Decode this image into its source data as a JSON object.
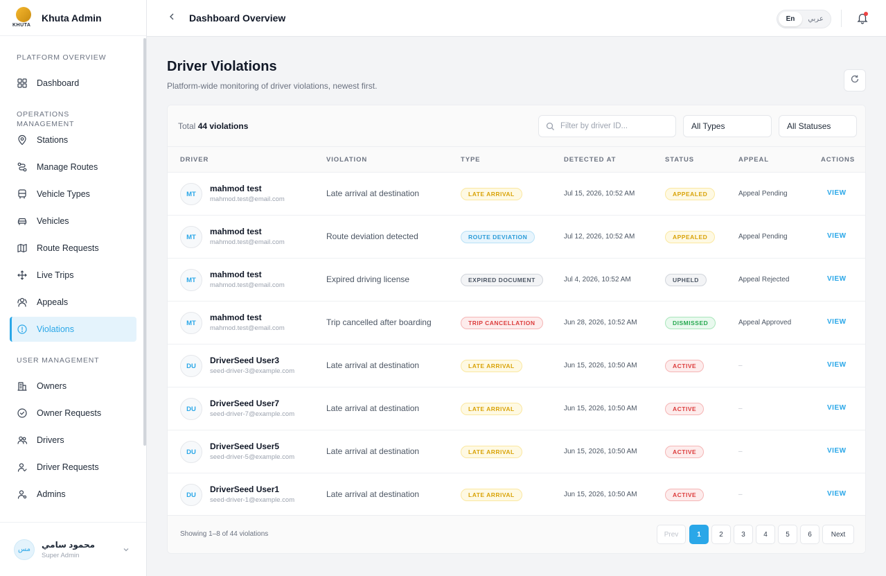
{
  "brand": {
    "title": "Khuta Admin",
    "logo_text": "KHUTA"
  },
  "sidebar": {
    "sections": [
      {
        "title": "PLATFORM OVERVIEW",
        "items": [
          {
            "label": "Dashboard",
            "icon": "grid-icon"
          }
        ]
      },
      {
        "title": "OPERATIONS MANAGEMENT",
        "items": [
          {
            "label": "Stations",
            "icon": "map-pin-icon"
          },
          {
            "label": "Manage Routes",
            "icon": "route-icon"
          },
          {
            "label": "Vehicle Types",
            "icon": "bus-icon"
          },
          {
            "label": "Vehicles",
            "icon": "car-icon"
          },
          {
            "label": "Route Requests",
            "icon": "map-icon"
          },
          {
            "label": "Live Trips",
            "icon": "move-icon"
          },
          {
            "label": "Appeals",
            "icon": "appeals-icon"
          },
          {
            "label": "Violations",
            "icon": "alert-circle-icon",
            "active": true
          }
        ]
      },
      {
        "title": "USER MANAGEMENT",
        "items": [
          {
            "label": "Owners",
            "icon": "building-icon"
          },
          {
            "label": "Owner Requests",
            "icon": "check-circle-icon"
          },
          {
            "label": "Drivers",
            "icon": "users-icon"
          },
          {
            "label": "Driver Requests",
            "icon": "user-check-icon"
          },
          {
            "label": "Admins",
            "icon": "user-gear-icon"
          }
        ]
      }
    ]
  },
  "user": {
    "initials": "مس",
    "name": "محمود سامي",
    "role": "Super Admin"
  },
  "header": {
    "title": "Dashboard Overview",
    "lang_en": "En",
    "lang_ar": "عربي"
  },
  "page": {
    "title": "Driver Violations",
    "subtitle": "Platform-wide monitoring of driver violations, newest first."
  },
  "toolbar": {
    "total_prefix": "Total",
    "total_value": "44 violations",
    "filter_placeholder": "Filter by driver ID...",
    "type_select": "All Types",
    "status_select": "All Statuses"
  },
  "table": {
    "columns": [
      "DRIVER",
      "VIOLATION",
      "TYPE",
      "DETECTED AT",
      "STATUS",
      "APPEAL",
      "ACTIONS"
    ],
    "rows": [
      {
        "initials": "MT",
        "name": "mahmod test",
        "email": "mahmod.test@email.com",
        "violation": "Late arrival at destination",
        "type": "LATE ARRIVAL",
        "type_color": "yellow",
        "detected": "Jul 15, 2026, 10:52 AM",
        "status": "APPEALED",
        "status_color": "yellow",
        "appeal": "Appeal Pending",
        "action": "VIEW"
      },
      {
        "initials": "MT",
        "name": "mahmod test",
        "email": "mahmod.test@email.com",
        "violation": "Route deviation detected",
        "type": "ROUTE DEVIATION",
        "type_color": "blue",
        "detected": "Jul 12, 2026, 10:52 AM",
        "status": "APPEALED",
        "status_color": "yellow",
        "appeal": "Appeal Pending",
        "action": "VIEW"
      },
      {
        "initials": "MT",
        "name": "mahmod test",
        "email": "mahmod.test@email.com",
        "violation": "Expired driving license",
        "type": "EXPIRED DOCUMENT",
        "type_color": "gray",
        "detected": "Jul 4, 2026, 10:52 AM",
        "status": "UPHELD",
        "status_color": "gray",
        "appeal": "Appeal Rejected",
        "action": "VIEW"
      },
      {
        "initials": "MT",
        "name": "mahmod test",
        "email": "mahmod.test@email.com",
        "violation": "Trip cancelled after boarding",
        "type": "TRIP CANCELLATION",
        "type_color": "red",
        "detected": "Jun 28, 2026, 10:52 AM",
        "status": "DISMISSED",
        "status_color": "green",
        "appeal": "Appeal Approved",
        "action": "VIEW"
      },
      {
        "initials": "DU",
        "name": "DriverSeed User3",
        "email": "seed-driver-3@example.com",
        "violation": "Late arrival at destination",
        "type": "LATE ARRIVAL",
        "type_color": "yellow",
        "detected": "Jun 15, 2026, 10:50 AM",
        "status": "ACTIVE",
        "status_color": "red",
        "appeal": "–",
        "action": "VIEW"
      },
      {
        "initials": "DU",
        "name": "DriverSeed User7",
        "email": "seed-driver-7@example.com",
        "violation": "Late arrival at destination",
        "type": "LATE ARRIVAL",
        "type_color": "yellow",
        "detected": "Jun 15, 2026, 10:50 AM",
        "status": "ACTIVE",
        "status_color": "red",
        "appeal": "–",
        "action": "VIEW"
      },
      {
        "initials": "DU",
        "name": "DriverSeed User5",
        "email": "seed-driver-5@example.com",
        "violation": "Late arrival at destination",
        "type": "LATE ARRIVAL",
        "type_color": "yellow",
        "detected": "Jun 15, 2026, 10:50 AM",
        "status": "ACTIVE",
        "status_color": "red",
        "appeal": "–",
        "action": "VIEW"
      },
      {
        "initials": "DU",
        "name": "DriverSeed User1",
        "email": "seed-driver-1@example.com",
        "violation": "Late arrival at destination",
        "type": "LATE ARRIVAL",
        "type_color": "yellow",
        "detected": "Jun 15, 2026, 10:50 AM",
        "status": "ACTIVE",
        "status_color": "red",
        "appeal": "–",
        "action": "VIEW"
      }
    ]
  },
  "pagination": {
    "showing": "Showing 1–8 of 44 violations",
    "prev": "Prev",
    "pages": [
      "1",
      "2",
      "3",
      "4",
      "5",
      "6"
    ],
    "current": "1",
    "next": "Next"
  },
  "colors": {
    "accent": "#2aa7e8",
    "danger": "#ef4444"
  }
}
